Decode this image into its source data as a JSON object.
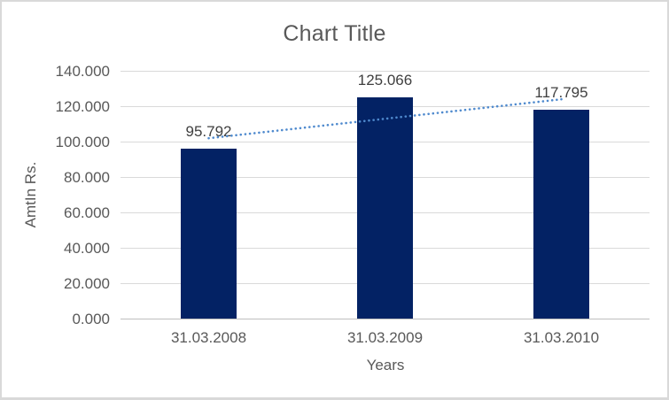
{
  "chart_data": {
    "type": "bar",
    "title": "Chart Title",
    "xlabel": "Years",
    "ylabel": "AmtIn Rs.",
    "categories": [
      "31.03.2008",
      "31.03.2009",
      "31.03.2010"
    ],
    "series": [
      {
        "name": "AmtIn Rs.",
        "values": [
          95.792,
          125.066,
          117.795
        ],
        "data_labels": [
          "95.792",
          "125.066",
          "117.795"
        ]
      }
    ],
    "ylim": [
      0,
      140
    ],
    "ytick_step": 20,
    "ytick_labels": [
      "0.000",
      "20.000",
      "40.000",
      "60.000",
      "80.000",
      "100.000",
      "120.000",
      "140.000"
    ],
    "grid": true,
    "legend_position": "none",
    "trendline": {
      "type": "linear",
      "style": "dotted",
      "color": "#4f8ace",
      "start_value": 101.9,
      "end_value": 123.9
    },
    "colors": {
      "bar_fill": "#032264",
      "title_text": "#595959",
      "axis_text": "#595959",
      "data_label_text": "#3f3f3f",
      "gridline": "#d9d9d9",
      "axis_line": "#bfbfbf",
      "border": "#d9d9d9",
      "background": "#ffffff"
    }
  }
}
